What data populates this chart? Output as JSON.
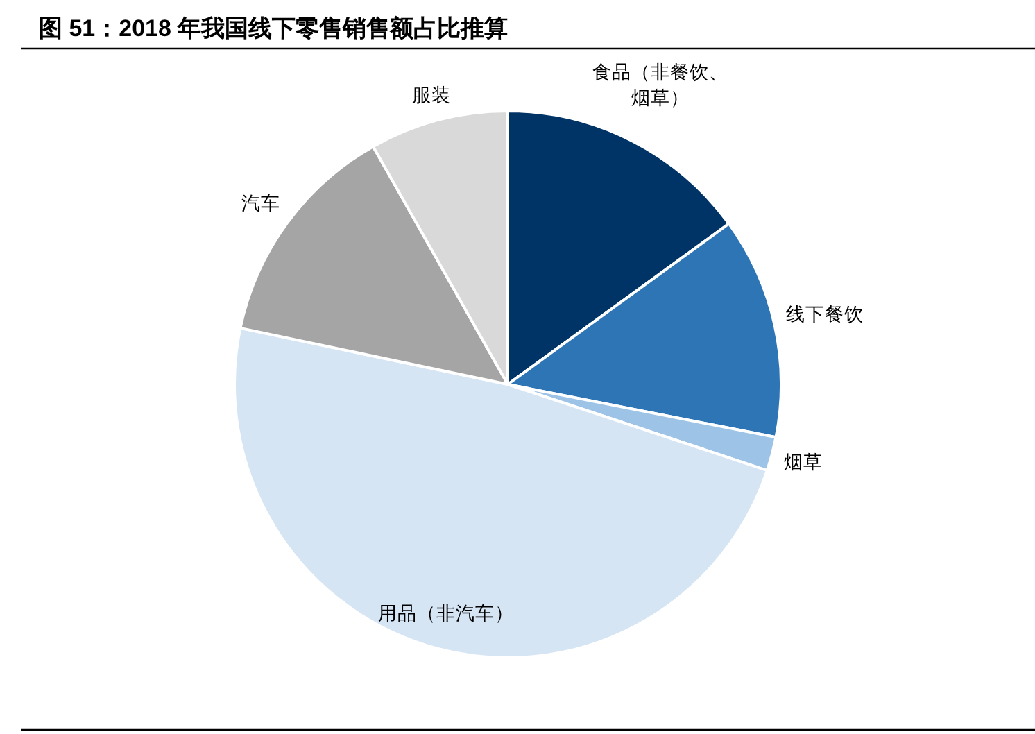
{
  "chart_data": {
    "type": "pie",
    "title": "图 51：2018 年我国线下零售销售额占比推算",
    "categories": [
      "食品（非餐饮、烟草）",
      "线下餐饮",
      "烟草",
      "用品（非汽车）",
      "汽车",
      "服装"
    ],
    "values": [
      15.0,
      13.1,
      2.0,
      48.2,
      13.5,
      8.2
    ],
    "colors": [
      "#003366",
      "#2e75b6",
      "#9dc3e6",
      "#d6e5f4",
      "#a5a5a5",
      "#d9d9d9"
    ]
  }
}
